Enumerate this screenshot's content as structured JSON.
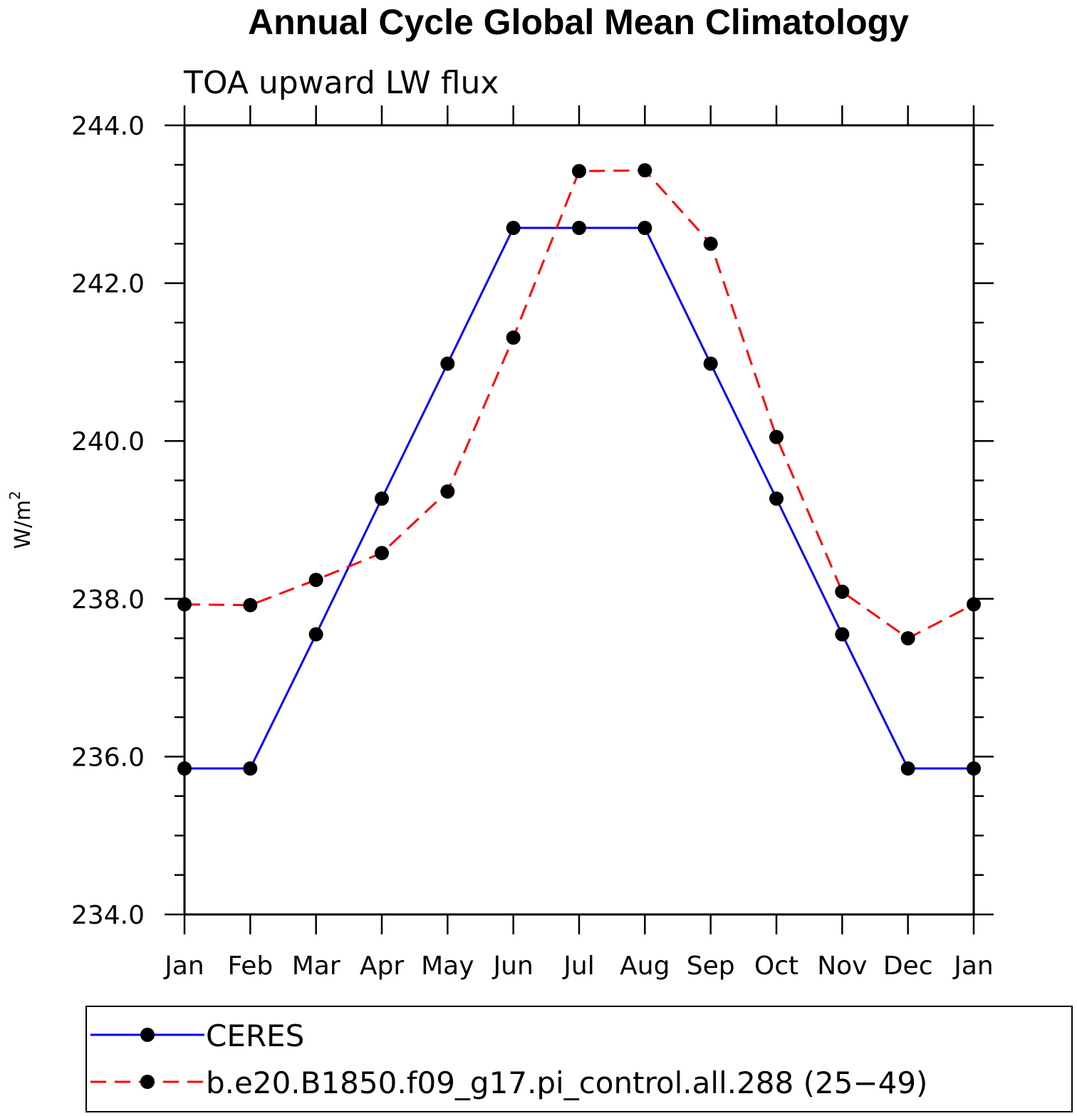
{
  "chart_data": {
    "type": "line",
    "title": "Annual Cycle Global Mean Climatology",
    "subtitle": "TOA upward LW flux",
    "ylabel": "W/m",
    "ylabel_superscript": "2",
    "categories": [
      "Jan",
      "Feb",
      "Mar",
      "Apr",
      "May",
      "Jun",
      "Jul",
      "Aug",
      "Sep",
      "Oct",
      "Nov",
      "Dec",
      "Jan"
    ],
    "ylim": [
      234.0,
      244.0
    ],
    "yticks": [
      "234.0",
      "236.0",
      "238.0",
      "240.0",
      "242.0",
      "244.0"
    ],
    "grid": false,
    "legend_position": "bottom",
    "series": [
      {
        "name": "CERES",
        "color": "#0000ff",
        "dash": "solid",
        "values": [
          235.85,
          235.85,
          237.55,
          239.27,
          240.98,
          242.7,
          242.7,
          242.7,
          240.98,
          239.27,
          237.55,
          235.85,
          235.85
        ]
      },
      {
        "name": "b.e20.B1850.f09_g17.pi_control.all.288 (25−49)",
        "color": "#ff0000",
        "dash": "dashed",
        "values": [
          237.93,
          237.92,
          238.24,
          238.58,
          239.36,
          241.31,
          243.42,
          243.43,
          242.5,
          240.05,
          238.09,
          237.5,
          237.93
        ]
      }
    ]
  }
}
